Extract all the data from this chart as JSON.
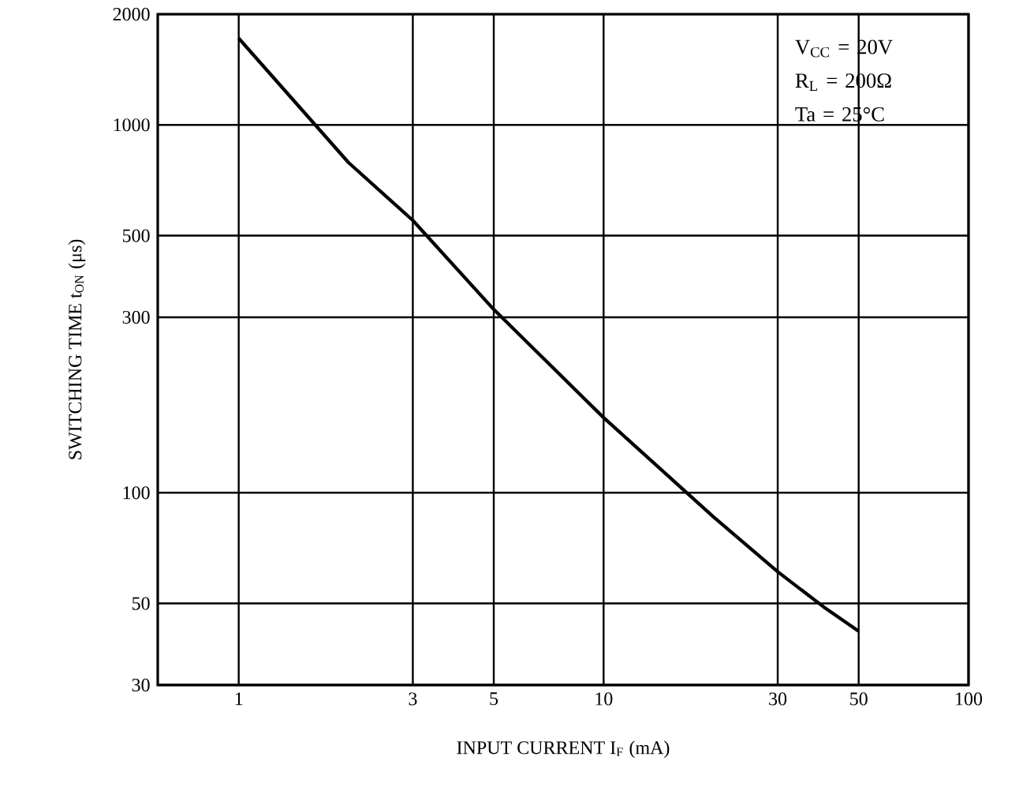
{
  "chart_data": {
    "type": "line",
    "xlabel": "INPUT CURRENT  I$_{F}$  (mA)",
    "ylabel": "SWITCHING TIME  t$_{ON}$  (μs)",
    "annotations": [
      "V$_{CC}$ = 20V",
      "R$_{L}$ = 200Ω",
      "Ta = 25°C"
    ],
    "log": "xy",
    "grid": true,
    "marker": "none",
    "line_style": "solid",
    "xlim": [
      0.6,
      100
    ],
    "ylim": [
      30,
      2000
    ],
    "xticks": [
      1,
      3,
      5,
      10,
      30,
      50,
      100
    ],
    "yticks": [
      30,
      50,
      100,
      300,
      500,
      1000,
      2000
    ],
    "series": [
      {
        "color": "#000000",
        "x": [
          1,
          2,
          3,
          5,
          10,
          20,
          30,
          40,
          50
        ],
        "values": [
          1720,
          790,
          550,
          315,
          160,
          86,
          61,
          49,
          42
        ]
      }
    ]
  }
}
